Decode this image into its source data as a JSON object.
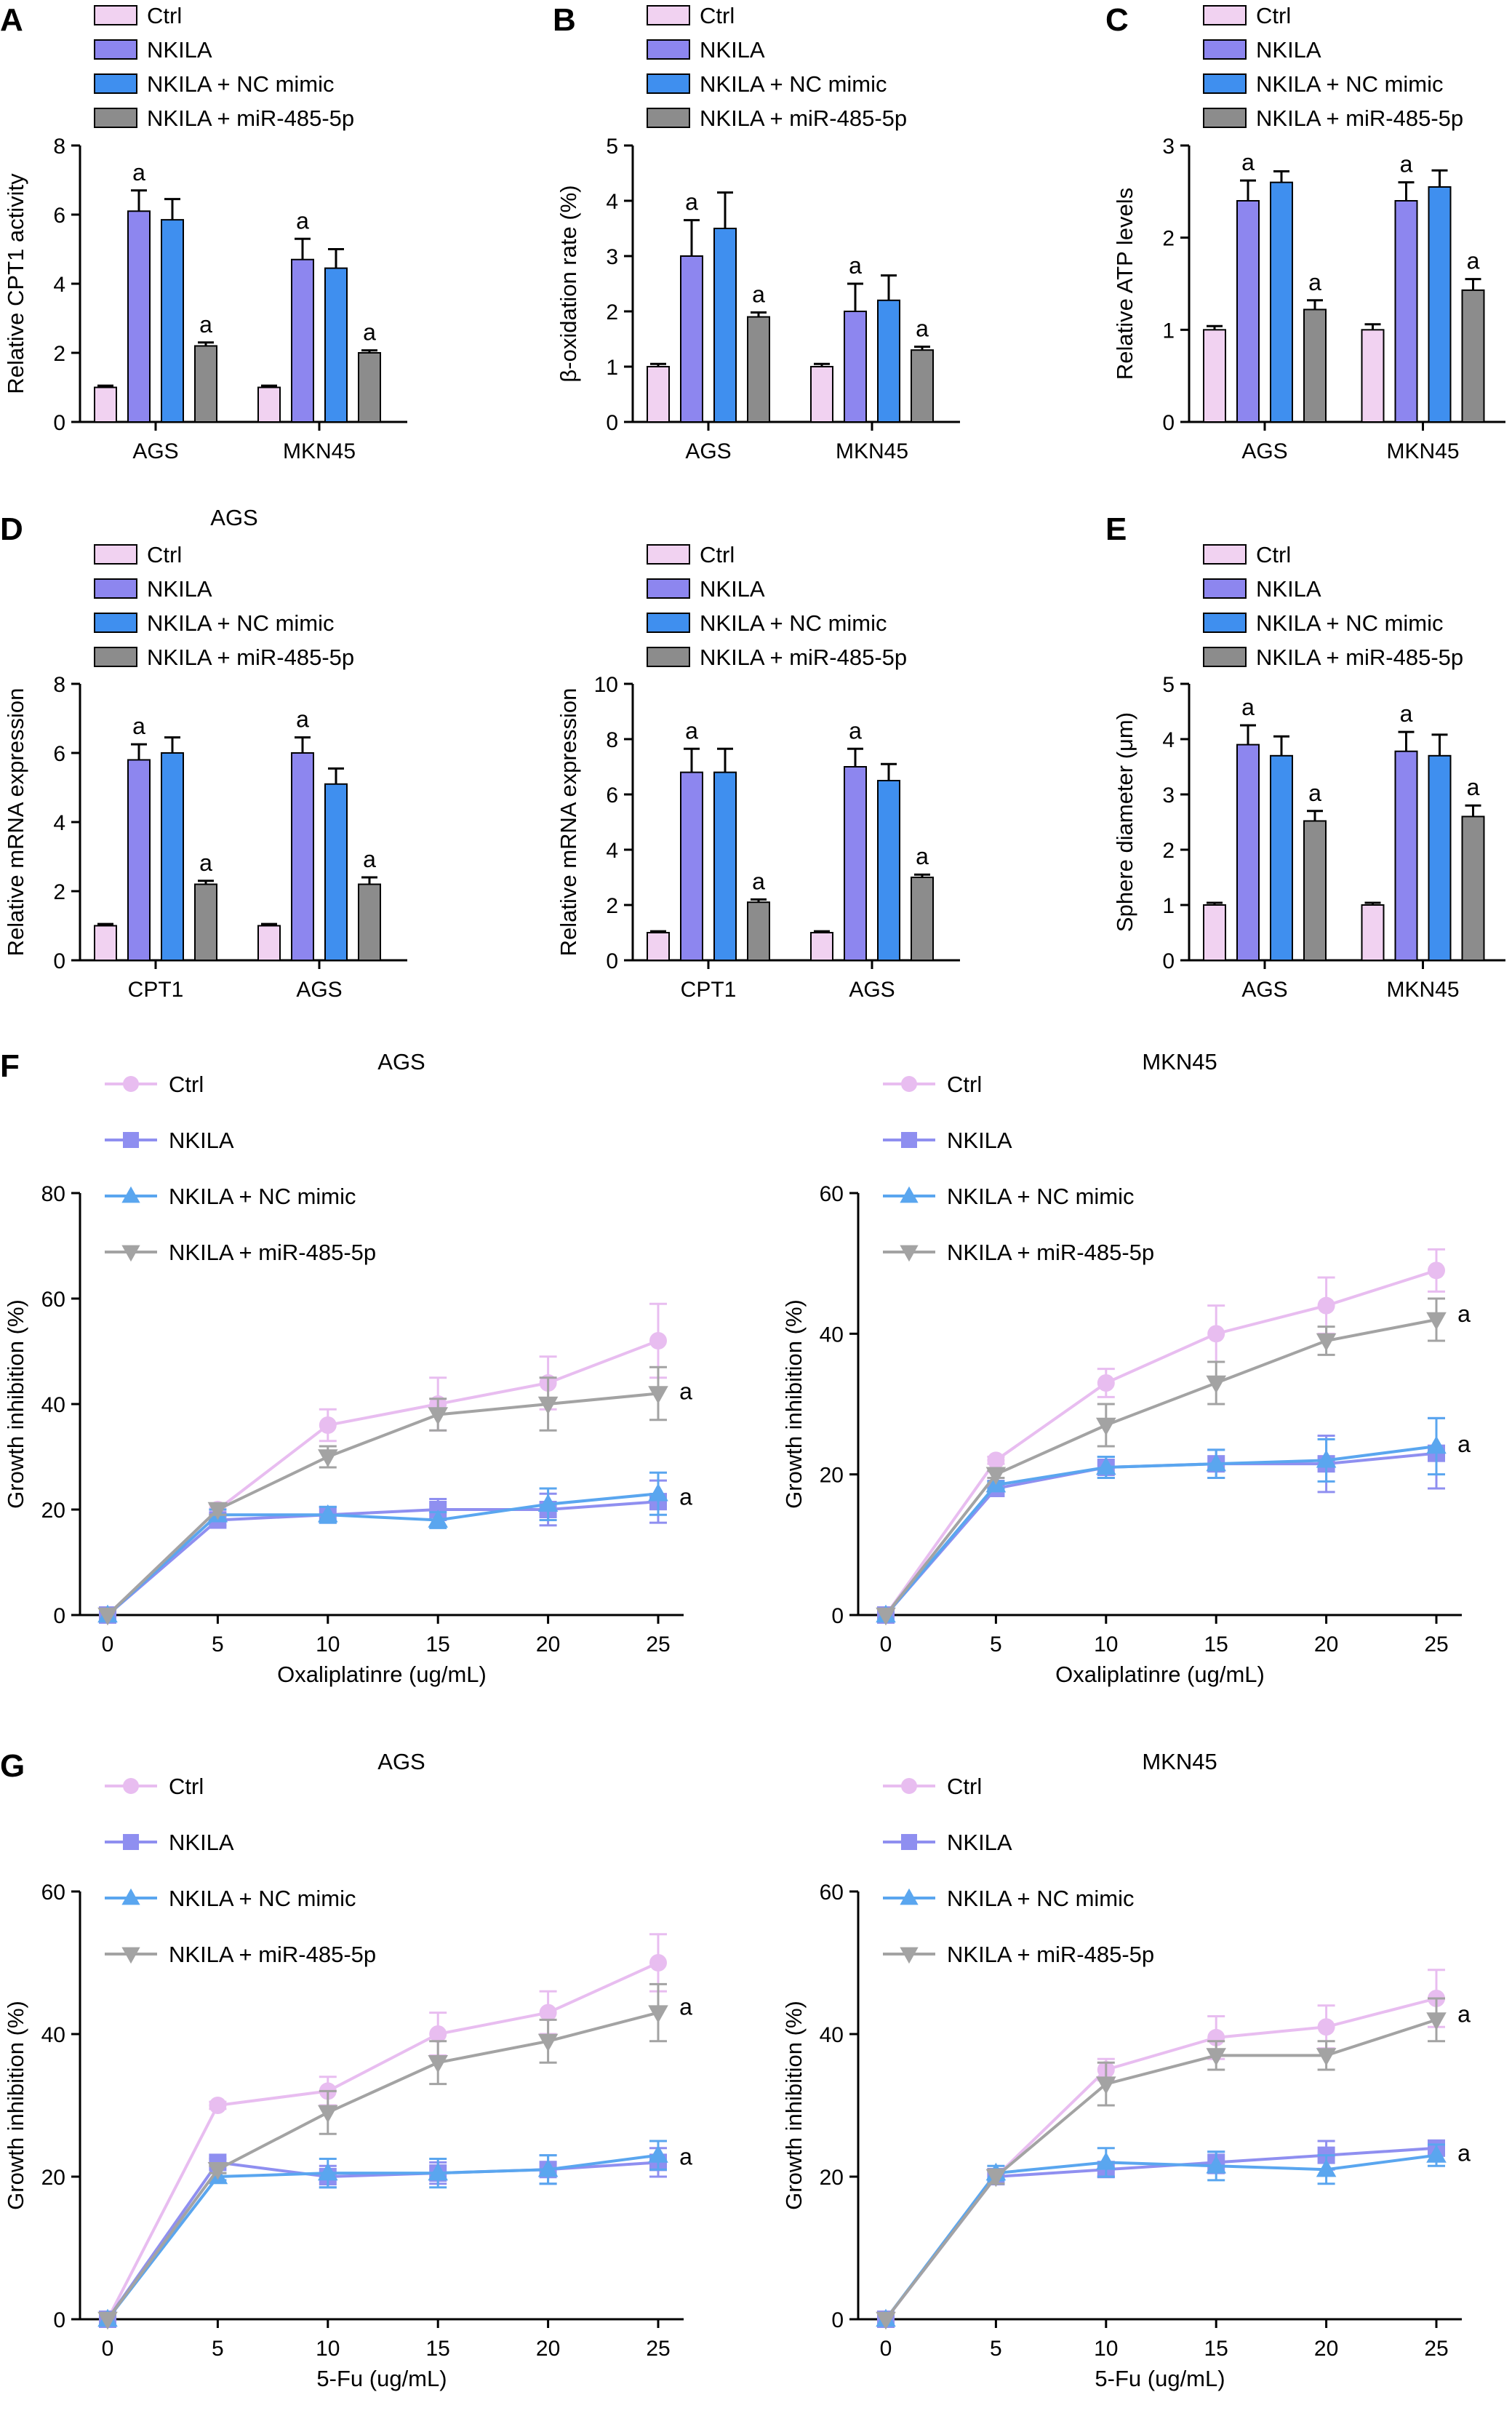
{
  "colors": {
    "ctrl_fill": "#f1d2f1",
    "nkila_fill": "#8d86ef",
    "nc_fill": "#3f8fef",
    "mir_fill": "#8c8c8c",
    "ctrl_line": "#e8bdf0",
    "nkila_line": "#8f8ff0",
    "nc_line": "#5aa6ef",
    "mir_line": "#a3a3a3"
  },
  "chart_data": [
    {
      "id": "A",
      "panel": "A",
      "type": "bar",
      "title": "",
      "categories": [
        "AGS",
        "MKN45"
      ],
      "ylabel": "Relative CPT1 activity",
      "xlabel": "",
      "ylim": [
        0,
        8
      ],
      "yticks": [
        "0",
        "2",
        "4",
        "6",
        "8"
      ],
      "legend": [
        "Ctrl",
        "NKILA",
        "NKILA + NC mimic",
        "NKILA + miR-485-5p"
      ],
      "series": [
        {
          "name": "Ctrl",
          "values": [
            1.0,
            1.0
          ],
          "errors": [
            0.05,
            0.05
          ],
          "sig": [
            "",
            ""
          ]
        },
        {
          "name": "NKILA",
          "values": [
            6.1,
            4.7
          ],
          "errors": [
            0.6,
            0.6
          ],
          "sig": [
            "a",
            "a"
          ]
        },
        {
          "name": "NKILA + NC mimic",
          "values": [
            5.85,
            4.45
          ],
          "errors": [
            0.6,
            0.55
          ],
          "sig": [
            "",
            ""
          ]
        },
        {
          "name": "NKILA + miR-485-5p",
          "values": [
            2.2,
            2.0
          ],
          "errors": [
            0.1,
            0.07
          ],
          "sig": [
            "a",
            "a"
          ]
        }
      ]
    },
    {
      "id": "B",
      "panel": "B",
      "type": "bar",
      "title": "",
      "categories": [
        "AGS",
        "MKN45"
      ],
      "ylabel": "β-oxidation rate (%)",
      "xlabel": "",
      "ylim": [
        0,
        5
      ],
      "yticks": [
        "0",
        "1",
        "2",
        "3",
        "4",
        "5"
      ],
      "legend": [
        "Ctrl",
        "NKILA",
        "NKILA + NC mimic",
        "NKILA + miR-485-5p"
      ],
      "series": [
        {
          "name": "Ctrl",
          "values": [
            1.0,
            1.0
          ],
          "errors": [
            0.05,
            0.05
          ],
          "sig": [
            "",
            ""
          ]
        },
        {
          "name": "NKILA",
          "values": [
            3.0,
            2.0
          ],
          "errors": [
            0.65,
            0.5
          ],
          "sig": [
            "a",
            "a"
          ]
        },
        {
          "name": "NKILA + NC mimic",
          "values": [
            3.5,
            2.2
          ],
          "errors": [
            0.65,
            0.45
          ],
          "sig": [
            "",
            ""
          ]
        },
        {
          "name": "NKILA + miR-485-5p",
          "values": [
            1.9,
            1.3
          ],
          "errors": [
            0.08,
            0.06
          ],
          "sig": [
            "a",
            "a"
          ]
        }
      ]
    },
    {
      "id": "C",
      "panel": "C",
      "type": "bar",
      "title": "",
      "categories": [
        "AGS",
        "MKN45"
      ],
      "ylabel": "Relative ATP levels",
      "xlabel": "",
      "ylim": [
        0,
        3
      ],
      "yticks": [
        "0",
        "1",
        "2",
        "3"
      ],
      "legend": [
        "Ctrl",
        "NKILA",
        "NKILA + NC mimic",
        "NKILA + miR-485-5p"
      ],
      "series": [
        {
          "name": "Ctrl",
          "values": [
            1.0,
            1.0
          ],
          "errors": [
            0.04,
            0.06
          ],
          "sig": [
            "",
            ""
          ]
        },
        {
          "name": "NKILA",
          "values": [
            2.4,
            2.4
          ],
          "errors": [
            0.22,
            0.2
          ],
          "sig": [
            "a",
            "a"
          ]
        },
        {
          "name": "NKILA + NC mimic",
          "values": [
            2.6,
            2.55
          ],
          "errors": [
            0.12,
            0.18
          ],
          "sig": [
            "",
            ""
          ]
        },
        {
          "name": "NKILA + miR-485-5p",
          "values": [
            1.22,
            1.43
          ],
          "errors": [
            0.1,
            0.12
          ],
          "sig": [
            "a",
            "a"
          ]
        }
      ]
    },
    {
      "id": "D1",
      "panel": "D",
      "type": "bar",
      "title": "AGS",
      "categories": [
        "CPT1",
        "AGS"
      ],
      "ylabel": "Relative mRNA expression",
      "xlabel": "",
      "ylim": [
        0,
        8
      ],
      "yticks": [
        "0",
        "2",
        "4",
        "6",
        "8"
      ],
      "legend": [
        "Ctrl",
        "NKILA",
        "NKILA + NC mimic",
        "NKILA + miR-485-5p"
      ],
      "series": [
        {
          "name": "Ctrl",
          "values": [
            1.0,
            1.0
          ],
          "errors": [
            0.05,
            0.05
          ],
          "sig": [
            "",
            ""
          ]
        },
        {
          "name": "NKILA",
          "values": [
            5.8,
            6.0
          ],
          "errors": [
            0.45,
            0.45
          ],
          "sig": [
            "a",
            "a"
          ]
        },
        {
          "name": "NKILA + NC mimic",
          "values": [
            6.0,
            5.1
          ],
          "errors": [
            0.45,
            0.45
          ],
          "sig": [
            "",
            ""
          ]
        },
        {
          "name": "NKILA + miR-485-5p",
          "values": [
            2.2,
            2.2
          ],
          "errors": [
            0.1,
            0.2
          ],
          "sig": [
            "a",
            "a"
          ]
        }
      ]
    },
    {
      "id": "D2",
      "panel": "",
      "type": "bar",
      "title": "",
      "categories": [
        "CPT1",
        "AGS"
      ],
      "ylabel": "Relative mRNA expression",
      "xlabel": "",
      "ylim": [
        0,
        10
      ],
      "yticks": [
        "0",
        "2",
        "4",
        "6",
        "8",
        "10"
      ],
      "legend": [
        "Ctrl",
        "NKILA",
        "NKILA + NC mimic",
        "NKILA + miR-485-5p"
      ],
      "series": [
        {
          "name": "Ctrl",
          "values": [
            1.0,
            1.0
          ],
          "errors": [
            0.05,
            0.05
          ],
          "sig": [
            "",
            ""
          ]
        },
        {
          "name": "NKILA",
          "values": [
            6.8,
            7.0
          ],
          "errors": [
            0.85,
            0.65
          ],
          "sig": [
            "a",
            "a"
          ]
        },
        {
          "name": "NKILA + NC mimic",
          "values": [
            6.8,
            6.5
          ],
          "errors": [
            0.85,
            0.6
          ],
          "sig": [
            "",
            ""
          ]
        },
        {
          "name": "NKILA + miR-485-5p",
          "values": [
            2.1,
            3.0
          ],
          "errors": [
            0.1,
            0.1
          ],
          "sig": [
            "a",
            "a"
          ]
        }
      ]
    },
    {
      "id": "E",
      "panel": "E",
      "type": "bar",
      "title": "",
      "categories": [
        "AGS",
        "MKN45"
      ],
      "ylabel": "Sphere diameter (μm)",
      "xlabel": "",
      "ylim": [
        0,
        5
      ],
      "yticks": [
        "0",
        "1",
        "2",
        "3",
        "4",
        "5"
      ],
      "legend": [
        "Ctrl",
        "NKILA",
        "NKILA + NC mimic",
        "NKILA + miR-485-5p"
      ],
      "series": [
        {
          "name": "Ctrl",
          "values": [
            1.0,
            1.0
          ],
          "errors": [
            0.04,
            0.04
          ],
          "sig": [
            "",
            ""
          ]
        },
        {
          "name": "NKILA",
          "values": [
            3.9,
            3.78
          ],
          "errors": [
            0.35,
            0.35
          ],
          "sig": [
            "a",
            "a"
          ]
        },
        {
          "name": "NKILA + NC mimic",
          "values": [
            3.7,
            3.7
          ],
          "errors": [
            0.35,
            0.38
          ],
          "sig": [
            "",
            ""
          ]
        },
        {
          "name": "NKILA + miR-485-5p",
          "values": [
            2.52,
            2.6
          ],
          "errors": [
            0.18,
            0.2
          ],
          "sig": [
            "a",
            "a"
          ]
        }
      ]
    },
    {
      "id": "F1",
      "panel": "F",
      "type": "line",
      "title": "AGS",
      "x": [
        0,
        5,
        10,
        15,
        20,
        25
      ],
      "xticks": [
        "0",
        "5",
        "10",
        "15",
        "20",
        "25"
      ],
      "xlabel": "Oxaliplatinre (ug/mL)",
      "ylabel": "Growth inhibition (%)",
      "ylim": [
        0,
        80
      ],
      "yticks": [
        "0",
        "20",
        "40",
        "60",
        "80"
      ],
      "series": [
        {
          "name": "Ctrl",
          "values": [
            0,
            20,
            36,
            40,
            44,
            52
          ],
          "errors": [
            0,
            1,
            3,
            5,
            5,
            7
          ]
        },
        {
          "name": "NKILA",
          "values": [
            0,
            18,
            19,
            20,
            20,
            21.5
          ],
          "errors": [
            0,
            1,
            1.5,
            2,
            3,
            4
          ]
        },
        {
          "name": "NKILA + NC mimic",
          "values": [
            0,
            19,
            19,
            18,
            21,
            23
          ],
          "errors": [
            0,
            1,
            1.5,
            1.5,
            3,
            4
          ]
        },
        {
          "name": "NKILA + miR-485-5p",
          "values": [
            0,
            20,
            30,
            38,
            40,
            42
          ],
          "errors": [
            0,
            1,
            2,
            3,
            5,
            5
          ]
        }
      ],
      "annotations": [
        {
          "label": "a",
          "value": 42
        },
        {
          "label": "a",
          "value": 22
        }
      ]
    },
    {
      "id": "F2",
      "panel": "",
      "type": "line",
      "title": "MKN45",
      "x": [
        0,
        5,
        10,
        15,
        20,
        25
      ],
      "xticks": [
        "0",
        "5",
        "10",
        "15",
        "20",
        "25"
      ],
      "xlabel": "Oxaliplatinre (ug/mL)",
      "ylabel": "Growth inhibition (%)",
      "ylim": [
        0,
        60
      ],
      "yticks": [
        "0",
        "20",
        "40",
        "60"
      ],
      "series": [
        {
          "name": "Ctrl",
          "values": [
            0,
            22,
            33,
            40,
            44,
            49
          ],
          "errors": [
            0,
            0.5,
            2,
            4,
            4,
            3
          ]
        },
        {
          "name": "NKILA",
          "values": [
            0,
            18,
            21,
            21.5,
            21.5,
            23
          ],
          "errors": [
            0,
            0.5,
            1.5,
            2,
            4,
            5
          ]
        },
        {
          "name": "NKILA + NC mimic",
          "values": [
            0,
            18.5,
            21,
            21.5,
            22,
            24
          ],
          "errors": [
            0,
            0.5,
            1.5,
            2,
            3,
            4
          ]
        },
        {
          "name": "NKILA + miR-485-5p",
          "values": [
            0,
            20,
            27,
            33,
            39,
            42
          ],
          "errors": [
            0,
            0.5,
            3,
            3,
            2,
            3
          ]
        }
      ],
      "annotations": [
        {
          "label": "a",
          "value": 42.5
        },
        {
          "label": "a",
          "value": 24
        }
      ]
    },
    {
      "id": "G1",
      "panel": "G",
      "type": "line",
      "title": "AGS",
      "x": [
        0,
        5,
        10,
        15,
        20,
        25
      ],
      "xticks": [
        "0",
        "5",
        "10",
        "15",
        "20",
        "25"
      ],
      "xlabel": "5-Fu (ug/mL)",
      "ylabel": "Growth inhibition (%)",
      "ylim": [
        0,
        60
      ],
      "yticks": [
        "0",
        "20",
        "40",
        "60"
      ],
      "series": [
        {
          "name": "Ctrl",
          "values": [
            0,
            30,
            32,
            40,
            43,
            50
          ],
          "errors": [
            0,
            0.5,
            2,
            3,
            3,
            4
          ]
        },
        {
          "name": "NKILA",
          "values": [
            0,
            22,
            20,
            20.5,
            21,
            22
          ],
          "errors": [
            0,
            0.5,
            1.5,
            1.5,
            2,
            2
          ]
        },
        {
          "name": "NKILA + NC mimic",
          "values": [
            0,
            20,
            20.5,
            20.5,
            21,
            23
          ],
          "errors": [
            0,
            0.5,
            2,
            2,
            2,
            2
          ]
        },
        {
          "name": "NKILA + miR-485-5p",
          "values": [
            0,
            21,
            29,
            36,
            39,
            43
          ],
          "errors": [
            0,
            0.5,
            3,
            3,
            3,
            4
          ]
        }
      ],
      "annotations": [
        {
          "label": "a",
          "value": 43.5
        },
        {
          "label": "a",
          "value": 22.5
        }
      ]
    },
    {
      "id": "G2",
      "panel": "",
      "type": "line",
      "title": "MKN45",
      "x": [
        0,
        5,
        10,
        15,
        20,
        25
      ],
      "xticks": [
        "0",
        "5",
        "10",
        "15",
        "20",
        "25"
      ],
      "xlabel": "5-Fu (ug/mL)",
      "ylabel": "Growth inhibition (%)",
      "ylim": [
        0,
        60
      ],
      "yticks": [
        "0",
        "20",
        "40",
        "60"
      ],
      "series": [
        {
          "name": "Ctrl",
          "values": [
            0,
            20,
            35,
            39.5,
            41,
            45
          ],
          "errors": [
            0,
            1,
            1.5,
            3,
            3,
            4
          ]
        },
        {
          "name": "NKILA",
          "values": [
            0,
            20,
            21,
            22,
            23,
            24
          ],
          "errors": [
            0,
            1,
            1,
            1.5,
            2,
            1
          ]
        },
        {
          "name": "NKILA + NC mimic",
          "values": [
            0,
            20.5,
            22,
            21.5,
            21,
            23
          ],
          "errors": [
            0,
            1,
            2,
            2,
            2,
            1.5
          ]
        },
        {
          "name": "NKILA + miR-485-5p",
          "values": [
            0,
            20,
            33,
            37,
            37,
            42
          ],
          "errors": [
            0,
            1,
            3,
            2,
            2,
            3
          ]
        }
      ],
      "annotations": [
        {
          "label": "a",
          "value": 42.5
        },
        {
          "label": "a",
          "value": 23
        }
      ]
    }
  ]
}
